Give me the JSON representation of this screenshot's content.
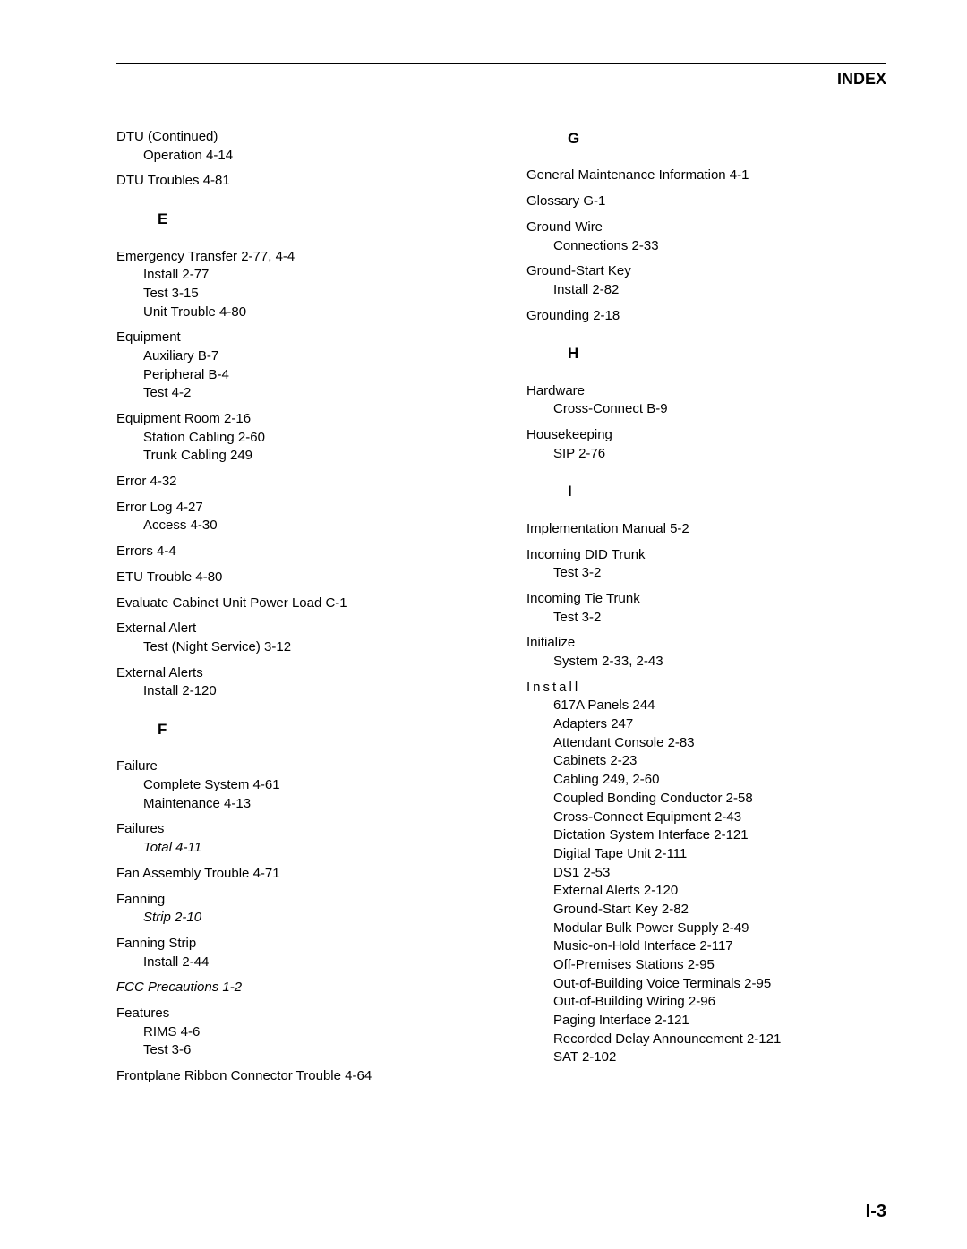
{
  "header": {
    "title": "INDEX"
  },
  "footer": {
    "page": "I-3"
  },
  "left": {
    "dtu_cont": {
      "line1": "DTU  (Continued)",
      "op": "Operation  4-14"
    },
    "dtu_troubles": "DTU  Troubles  4-81",
    "E": "E",
    "emerg": {
      "head": "Emergency  Transfer  2-77,  4-4",
      "install": "Install  2-77",
      "test": "Test  3-15",
      "unit": "Unit  Trouble  4-80"
    },
    "equip": {
      "head": "Equipment",
      "aux": "Auxiliary  B-7",
      "periph": "Peripheral  B-4",
      "test": "Test  4-2"
    },
    "equip_room": {
      "head": "Equipment  Room  2-16",
      "station": "Station  Cabling  2-60",
      "trunk": "Trunk  Cabling  249"
    },
    "error": "Error  4-32",
    "error_log": {
      "head": "Error  Log  4-27",
      "access": "Access  4-30"
    },
    "errors": "Errors  4-4",
    "etu": "ETU  Trouble  4-80",
    "eval": "Evaluate  Cabinet  Unit  Power  Load  C-1",
    "ext_alert": {
      "head": "External  Alert",
      "test": "Test  (Night  Service)  3-12"
    },
    "ext_alerts": {
      "head": "External  Alerts",
      "install": "Install  2-120"
    },
    "F": "F",
    "failure": {
      "head": "Failure",
      "complete": "Complete  System  4-61",
      "maint": "Maintenance  4-13"
    },
    "failures": {
      "head": "Failures",
      "total": "Total  4-11"
    },
    "fan": "Fan  Assembly  Trouble  4-71",
    "fanning": {
      "head": "Fanning",
      "strip": "Strip  2-10"
    },
    "fanning_strip": {
      "head": "Fanning  Strip",
      "install": "Install  2-44"
    },
    "fcc": "FCC  Precautions  1-2",
    "features": {
      "head": "Features",
      "rims": "RIMS  4-6",
      "test": "Test  3-6"
    },
    "frontplane": "Frontplane  Ribbon  Connector  Trouble  4-64"
  },
  "right": {
    "G": "G",
    "general": "General  Maintenance  Information  4-1",
    "glossary": "Glossary  G-1",
    "ground_wire": {
      "head": "Ground  Wire",
      "conn": "Connections  2-33"
    },
    "ground_start": {
      "head": "Ground-Start  Key",
      "install": "Install  2-82"
    },
    "grounding": "Grounding  2-18",
    "H": "H",
    "hardware": {
      "head": "Hardware",
      "cross": "Cross-Connect  B-9"
    },
    "housekeeping": {
      "head": "Housekeeping",
      "sip": "SIP  2-76"
    },
    "I": "I",
    "impl": "Implementation  Manual  5-2",
    "inc_did": {
      "head": "Incoming  DID  Trunk",
      "test": "Test  3-2"
    },
    "inc_tie": {
      "head": "Incoming  Tie  Trunk",
      "test": "Test  3-2"
    },
    "initialize": {
      "head": "Initialize",
      "system": "System   2-33, 2-43"
    },
    "install": {
      "head": "Install",
      "a1": "617A  Panels  244",
      "a2": "Adapters  247",
      "a3": "Attendant  Console  2-83",
      "a4": "Cabinets  2-23",
      "a5": "Cabling  249,  2-60",
      "a6": "Coupled  Bonding  Conductor  2-58",
      "a7": "Cross-Connect  Equipment  2-43",
      "a8": "Dictation  System  Interface  2-121",
      "a9": "Digital  Tape  Unit  2-111",
      "a10": "DS1  2-53",
      "a11": "External  Alerts  2-120",
      "a12": "Ground-Start  Key  2-82",
      "a13": "Modular  Bulk  Power  Supply  2-49",
      "a14": "Music-on-Hold  Interface  2-117",
      "a15": "Off-Premises  Stations  2-95",
      "a16": "Out-of-Building  Voice  Terminals  2-95",
      "a17": "Out-of-Building  Wiring  2-96",
      "a18": "Paging  Interface  2-121",
      "a19": "Recorded  Delay  Announcement  2-121",
      "a20": "SAT  2-102"
    }
  }
}
